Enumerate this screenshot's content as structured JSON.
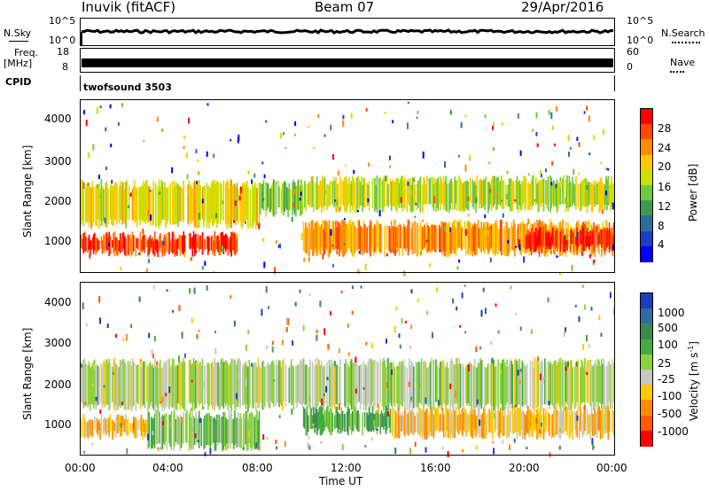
{
  "header": {
    "station": "Inuvik (fitACF)",
    "beam": "Beam 07",
    "date": "29/Apr/2016"
  },
  "top_panels": {
    "nsky_label": "N.Sky",
    "nsky_ticks": [
      "10^5",
      "10^0"
    ],
    "nsearch_label": "N.Search",
    "nsearch_ticks": [
      "10^5",
      "10^0"
    ],
    "freq_label_1": "Freq.",
    "freq_label_2": "[MHz]",
    "freq_ticks": [
      "18",
      "8"
    ],
    "nave_label": "Nave",
    "nave_ticks": [
      "60",
      "0"
    ],
    "cpid_label": "CPID",
    "cpid_value": "twofsound 3503"
  },
  "axes": {
    "ylabel": "Slant Range [km]",
    "yticks": [
      "4000",
      "3000",
      "2000",
      "1000"
    ],
    "xticks": [
      "00:00",
      "04:00",
      "08:00",
      "12:00",
      "16:00",
      "20:00",
      "00:00"
    ],
    "xlabel": "Time UT"
  },
  "power_colorbar": {
    "label": "Power [dB]",
    "ticks": [
      "28",
      "24",
      "20",
      "16",
      "12",
      "8",
      "4"
    ],
    "colors": [
      "#ff0000",
      "#ff4800",
      "#ff8c00",
      "#ffc800",
      "#c8e000",
      "#6ec840",
      "#3c9a50",
      "#2a6ea0",
      "#1e3cc8",
      "#0000ff"
    ]
  },
  "velocity_colorbar": {
    "label": "Velocity [m s",
    "label_sup": "-1",
    "label_end": "]",
    "ticks": [
      "1000",
      "500",
      "100",
      "25",
      "-25",
      "-100",
      "-500",
      "-1000"
    ],
    "colors": [
      "#1e3cbe",
      "#2a6ea0",
      "#3c8a50",
      "#44aa44",
      "#8cd23c",
      "#c8c8c0",
      "#ffc800",
      "#ff8c00",
      "#ff5a00",
      "#ff0000"
    ]
  },
  "chart_data": {
    "type": "heatmap",
    "title": "Inuvik (fitACF) Beam 07 29/Apr/2016",
    "xlabel": "Time UT",
    "ylabel": "Slant Range [km]",
    "x_range_hours": [
      0,
      24
    ],
    "y_range_km": [
      200,
      4500
    ],
    "panels": [
      {
        "name": "Power [dB]",
        "scale": [
          0,
          30
        ],
        "bands": [
          {
            "t0": 0,
            "t1": 7,
            "r0": 700,
            "r1": 1100,
            "value": 26
          },
          {
            "t0": 0,
            "t1": 8,
            "r0": 1400,
            "r1": 2400,
            "value": 18
          },
          {
            "t0": 8,
            "t1": 10,
            "r0": 1700,
            "r1": 2400,
            "value": 14
          },
          {
            "t0": 10,
            "t1": 24,
            "r0": 1800,
            "r1": 2500,
            "value": 16
          },
          {
            "t0": 10,
            "t1": 24,
            "r0": 700,
            "r1": 1400,
            "value": 22
          },
          {
            "t0": 20,
            "t1": 24,
            "r0": 800,
            "r1": 1200,
            "value": 28
          }
        ]
      },
      {
        "name": "Velocity [m s-1]",
        "scale": [
          -1000,
          1000
        ],
        "bands": [
          {
            "t0": 0,
            "t1": 24,
            "r0": 1400,
            "r1": 2500,
            "value": 0
          },
          {
            "t0": 0,
            "t1": 3,
            "r0": 700,
            "r1": 1100,
            "value": -300
          },
          {
            "t0": 3,
            "t1": 8,
            "r0": 400,
            "r1": 1200,
            "value": 150
          },
          {
            "t0": 10,
            "t1": 14,
            "r0": 800,
            "r1": 1300,
            "value": 300
          },
          {
            "t0": 14,
            "t1": 24,
            "r0": 700,
            "r1": 1300,
            "value": -300
          }
        ]
      }
    ]
  }
}
